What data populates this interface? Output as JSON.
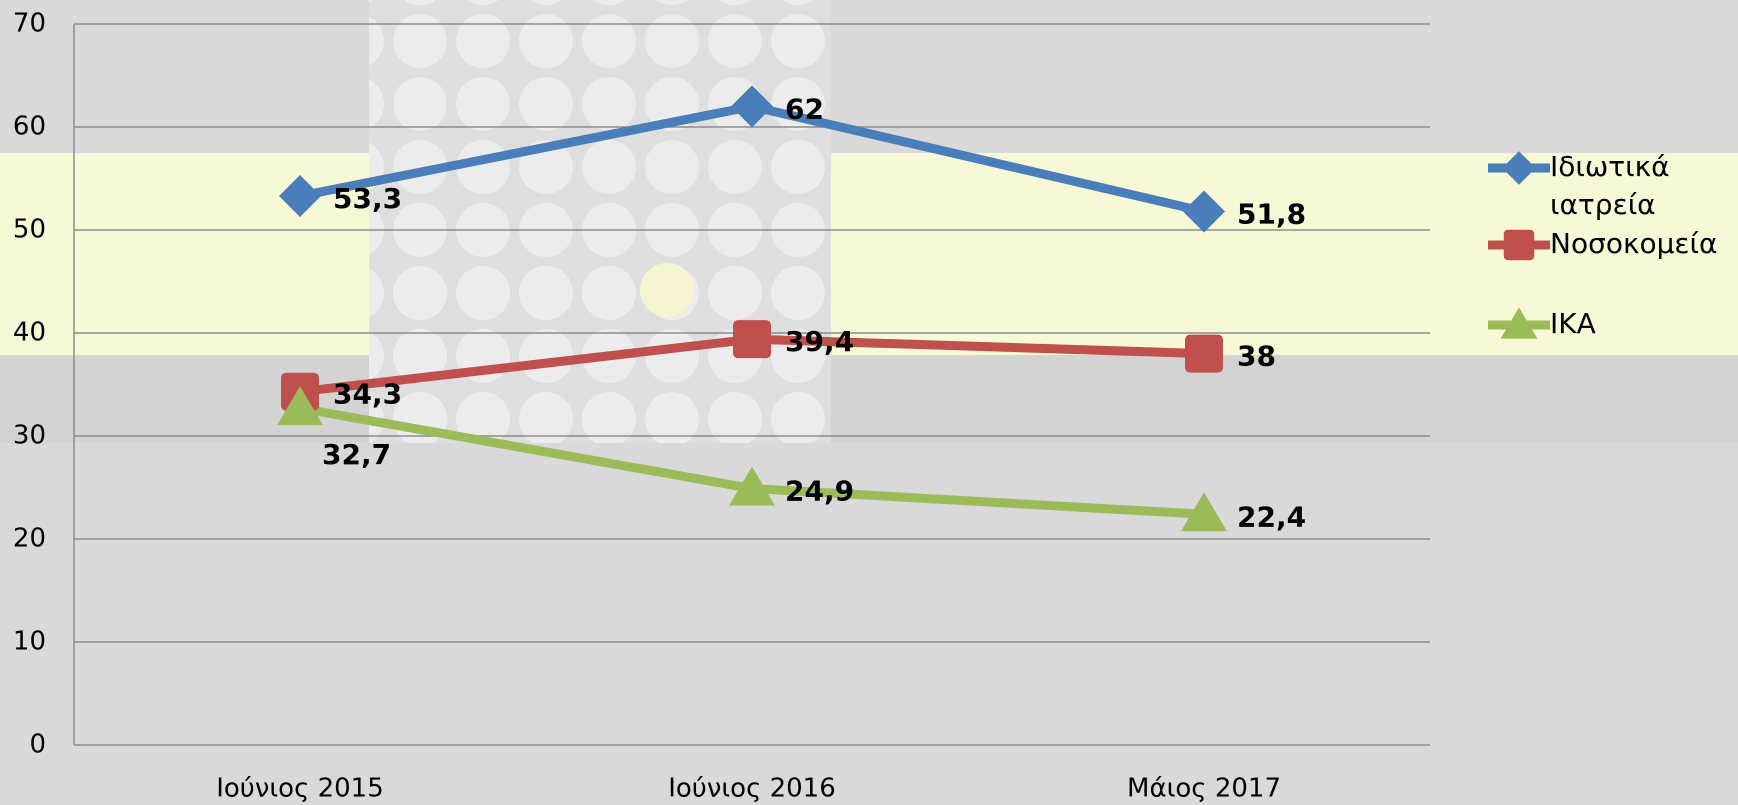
{
  "chart_data": {
    "type": "line",
    "categories": [
      "Ιούνιος 2015",
      "Ιούνιος 2016",
      "Μάιος 2017"
    ],
    "series": [
      {
        "name": "Ιδιωτικά ιατρεία",
        "color": "#4a7ebb",
        "marker": "diamond",
        "values": [
          53.3,
          62,
          51.8
        ],
        "value_labels": [
          "53,3",
          "62",
          "51,8"
        ]
      },
      {
        "name": "Νοσοκομεία",
        "color": "#c0504d",
        "marker": "square",
        "values": [
          34.3,
          39.4,
          38
        ],
        "value_labels": [
          "34,3",
          "39,4",
          "38"
        ]
      },
      {
        "name": "ΙΚΑ",
        "color": "#9bbb59",
        "marker": "triangle",
        "values": [
          32.7,
          24.9,
          22.4
        ],
        "value_labels": [
          "32,7",
          "24,9",
          "22,4"
        ]
      }
    ],
    "ylim": [
      0,
      70
    ],
    "yticks": [
      0,
      10,
      20,
      30,
      40,
      50,
      60,
      70
    ],
    "grid": true,
    "legend": "right"
  }
}
